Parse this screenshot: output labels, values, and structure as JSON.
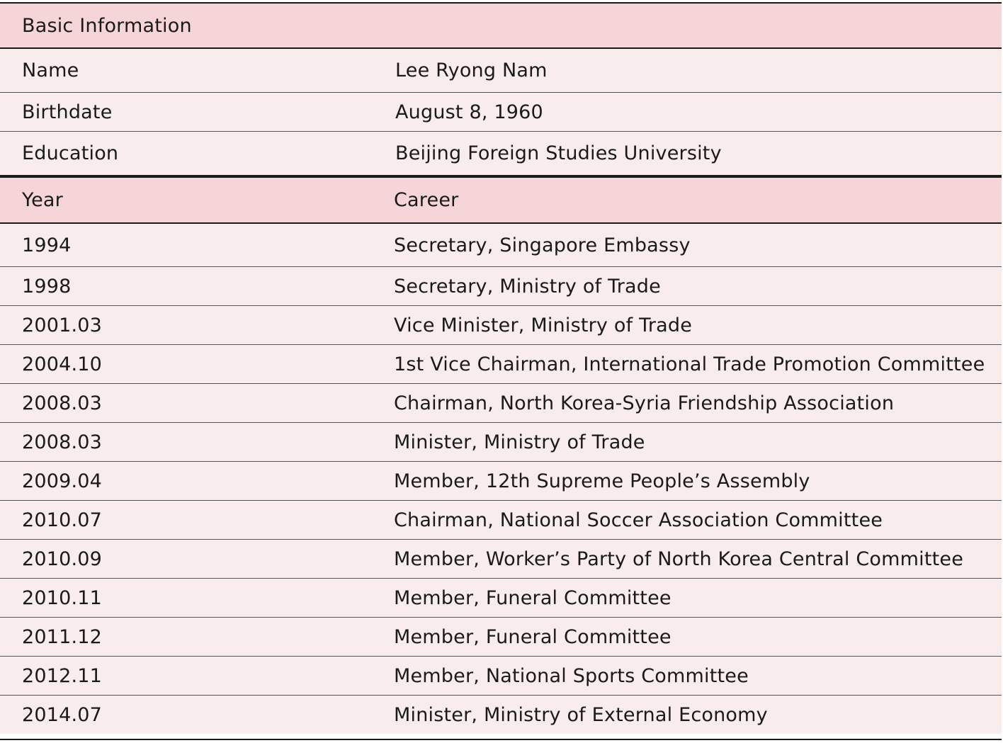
{
  "basic_section": {
    "title": "Basic Information",
    "rows": [
      {
        "label": "Name",
        "value": "Lee Ryong Nam"
      },
      {
        "label": "Birthdate",
        "value": "August 8, 1960"
      },
      {
        "label": "Education",
        "value": "Beijing Foreign Studies University"
      }
    ]
  },
  "career_section": {
    "year_header": "Year",
    "career_header": "Career",
    "rows": [
      {
        "year": "1994",
        "career": "Secretary, Singapore Embassy"
      },
      {
        "year": "1998",
        "career": "Secretary, Ministry of Trade"
      },
      {
        "year": "2001.03",
        "career": "Vice Minister, Ministry of Trade"
      },
      {
        "year": "2004.10",
        "career": "1st Vice Chairman, International Trade Promotion Committee"
      },
      {
        "year": "2008.03",
        "career": "Chairman, North Korea-Syria Friendship Association"
      },
      {
        "year": "2008.03",
        "career": "Minister, Ministry of Trade"
      },
      {
        "year": "2009.04",
        "career": "Member, 12th Supreme People’s Assembly"
      },
      {
        "year": "2010.07",
        "career": "Chairman, National Soccer Association Committee"
      },
      {
        "year": "2010.09",
        "career": "Member, Worker’s Party of North Korea Central Committee"
      },
      {
        "year": "2010.11",
        "career": "Member, Funeral Committee"
      },
      {
        "year": "2011.12",
        "career": "Member, Funeral Committee"
      },
      {
        "year": "2012.11",
        "career": "Member, National Sports Committee"
      },
      {
        "year": "2014.07",
        "career": "Minister, Ministry of External Economy"
      }
    ]
  }
}
